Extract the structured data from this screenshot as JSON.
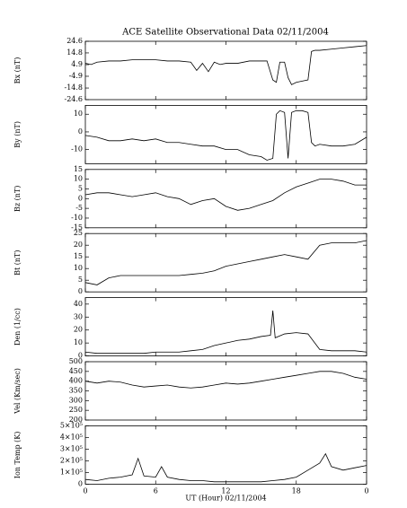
{
  "chart_data": [
    {
      "type": "line",
      "title": "ACE Satellite Observational Data   02/11/2004",
      "y_label": "Bx (nT)",
      "x": [
        0,
        0.5,
        1,
        2,
        3,
        4,
        5,
        6,
        7,
        8,
        9,
        9.5,
        10,
        10.5,
        11,
        11.5,
        12,
        13,
        14,
        15,
        15.5,
        16,
        16.3,
        16.6,
        17,
        17.3,
        17.6,
        18,
        18.5,
        19,
        19.3,
        19.6,
        20,
        21,
        22,
        23,
        24
      ],
      "values": [
        6,
        5,
        7,
        8,
        8,
        9,
        9,
        9,
        8,
        8,
        7,
        0,
        6,
        -1,
        7,
        5,
        6,
        6,
        8,
        8,
        8,
        -8,
        -10,
        7,
        7,
        -6,
        -12,
        -10,
        -9,
        -8,
        16,
        17,
        17,
        18,
        19,
        20,
        21
      ],
      "ylim": [
        -24.6,
        24.6
      ],
      "yticks": [
        -24.6,
        -14.8,
        -4.9,
        4.9,
        14.8,
        24.6
      ]
    },
    {
      "type": "line",
      "y_label": "By (nT)",
      "x": [
        0,
        1,
        2,
        3,
        4,
        5,
        6,
        7,
        8,
        9,
        10,
        11,
        12,
        13,
        14,
        15,
        15.5,
        16,
        16.3,
        16.6,
        17,
        17.3,
        17.6,
        18,
        18.5,
        19,
        19.3,
        19.6,
        20,
        21,
        22,
        23,
        24
      ],
      "values": [
        -2,
        -3,
        -5,
        -5,
        -4,
        -5,
        -4,
        -6,
        -6,
        -7,
        -8,
        -8,
        -10,
        -10,
        -13,
        -14,
        -16,
        -15,
        10,
        12,
        11,
        -15,
        11,
        12,
        12,
        11,
        -6,
        -8,
        -7,
        -8,
        -8,
        -7,
        -3
      ],
      "ylim": [
        -18,
        15
      ],
      "yticks": [
        -10,
        0,
        10
      ]
    },
    {
      "type": "line",
      "y_label": "Bz (nT)",
      "x": [
        0,
        1,
        2,
        3,
        4,
        5,
        6,
        7,
        8,
        9,
        10,
        11,
        12,
        13,
        14,
        15,
        16,
        17,
        18,
        19,
        20,
        21,
        22,
        23,
        24
      ],
      "values": [
        2,
        3,
        3,
        2,
        1,
        2,
        3,
        1,
        0,
        -3,
        -1,
        0,
        -4,
        -6,
        -5,
        -3,
        -1,
        3,
        6,
        8,
        10,
        10,
        9,
        7,
        7
      ],
      "ylim": [
        -15,
        15
      ],
      "yticks": [
        -15,
        -10,
        -5,
        0,
        5,
        10,
        15
      ]
    },
    {
      "type": "line",
      "y_label": "Bt (nT)",
      "x": [
        0,
        1,
        2,
        3,
        4,
        5,
        6,
        7,
        8,
        9,
        10,
        11,
        12,
        13,
        14,
        15,
        16,
        17,
        18,
        19,
        20,
        21,
        22,
        23,
        24
      ],
      "values": [
        4,
        3,
        6,
        7,
        7,
        7,
        7,
        7,
        7,
        7.5,
        8,
        9,
        11,
        12,
        13,
        14,
        15,
        16,
        15,
        14,
        20,
        21,
        21,
        21,
        22
      ],
      "ylim": [
        0,
        25
      ],
      "yticks": [
        0,
        5,
        10,
        15,
        20,
        25
      ]
    },
    {
      "type": "line",
      "y_label": "Den (1/cc)",
      "x": [
        0,
        1,
        2,
        3,
        4,
        5,
        6,
        7,
        8,
        9,
        10,
        11,
        12,
        13,
        14,
        15,
        15.8,
        16,
        16.2,
        17,
        18,
        19,
        20,
        21,
        22,
        23,
        24
      ],
      "values": [
        3,
        2,
        2,
        2,
        2,
        2,
        3,
        3,
        3,
        4,
        5,
        8,
        10,
        12,
        13,
        15,
        16,
        35,
        14,
        17,
        18,
        17,
        5,
        4,
        4,
        4,
        3
      ],
      "ylim": [
        0,
        45
      ],
      "yticks": [
        0,
        10,
        20,
        30,
        40
      ]
    },
    {
      "type": "line",
      "y_label": "Vel (Km/sec)",
      "x": [
        0,
        1,
        2,
        3,
        4,
        5,
        6,
        7,
        8,
        9,
        10,
        11,
        12,
        13,
        14,
        15,
        16,
        17,
        18,
        19,
        20,
        21,
        22,
        23,
        24
      ],
      "values": [
        400,
        390,
        400,
        395,
        380,
        370,
        375,
        380,
        370,
        365,
        370,
        380,
        390,
        385,
        390,
        400,
        410,
        420,
        430,
        440,
        450,
        450,
        440,
        420,
        410
      ],
      "ylim": [
        200,
        500
      ],
      "yticks": [
        200,
        250,
        300,
        350,
        400,
        450,
        500
      ]
    },
    {
      "type": "line",
      "y_label": "Ion Temp (K)",
      "x_label": "UT (Hour)  02/11/2004",
      "x": [
        0,
        1,
        2,
        3,
        4,
        4.5,
        5,
        6,
        6.5,
        7,
        8,
        9,
        10,
        11,
        12,
        13,
        14,
        15,
        16,
        17,
        18,
        19,
        20,
        20.5,
        21,
        22,
        23,
        24
      ],
      "values": [
        40000,
        30000,
        50000,
        60000,
        80000,
        220000,
        70000,
        60000,
        150000,
        60000,
        40000,
        30000,
        30000,
        20000,
        20000,
        20000,
        20000,
        20000,
        30000,
        40000,
        60000,
        120000,
        180000,
        260000,
        150000,
        120000,
        140000,
        160000
      ],
      "ylim": [
        0,
        500000
      ],
      "yticks": [
        0,
        {
          "value": 100000,
          "label": "1×10⁵"
        },
        {
          "value": 200000,
          "label": "2×10⁵"
        },
        {
          "value": 300000,
          "label": "3×10⁵"
        },
        {
          "value": 400000,
          "label": "4×10⁵"
        },
        {
          "value": 500000,
          "label": "5×10⁵"
        }
      ],
      "xlim": [
        0,
        24
      ],
      "xticks": [
        0,
        6,
        12,
        18,
        {
          "value": 24,
          "label": "0"
        }
      ]
    }
  ]
}
